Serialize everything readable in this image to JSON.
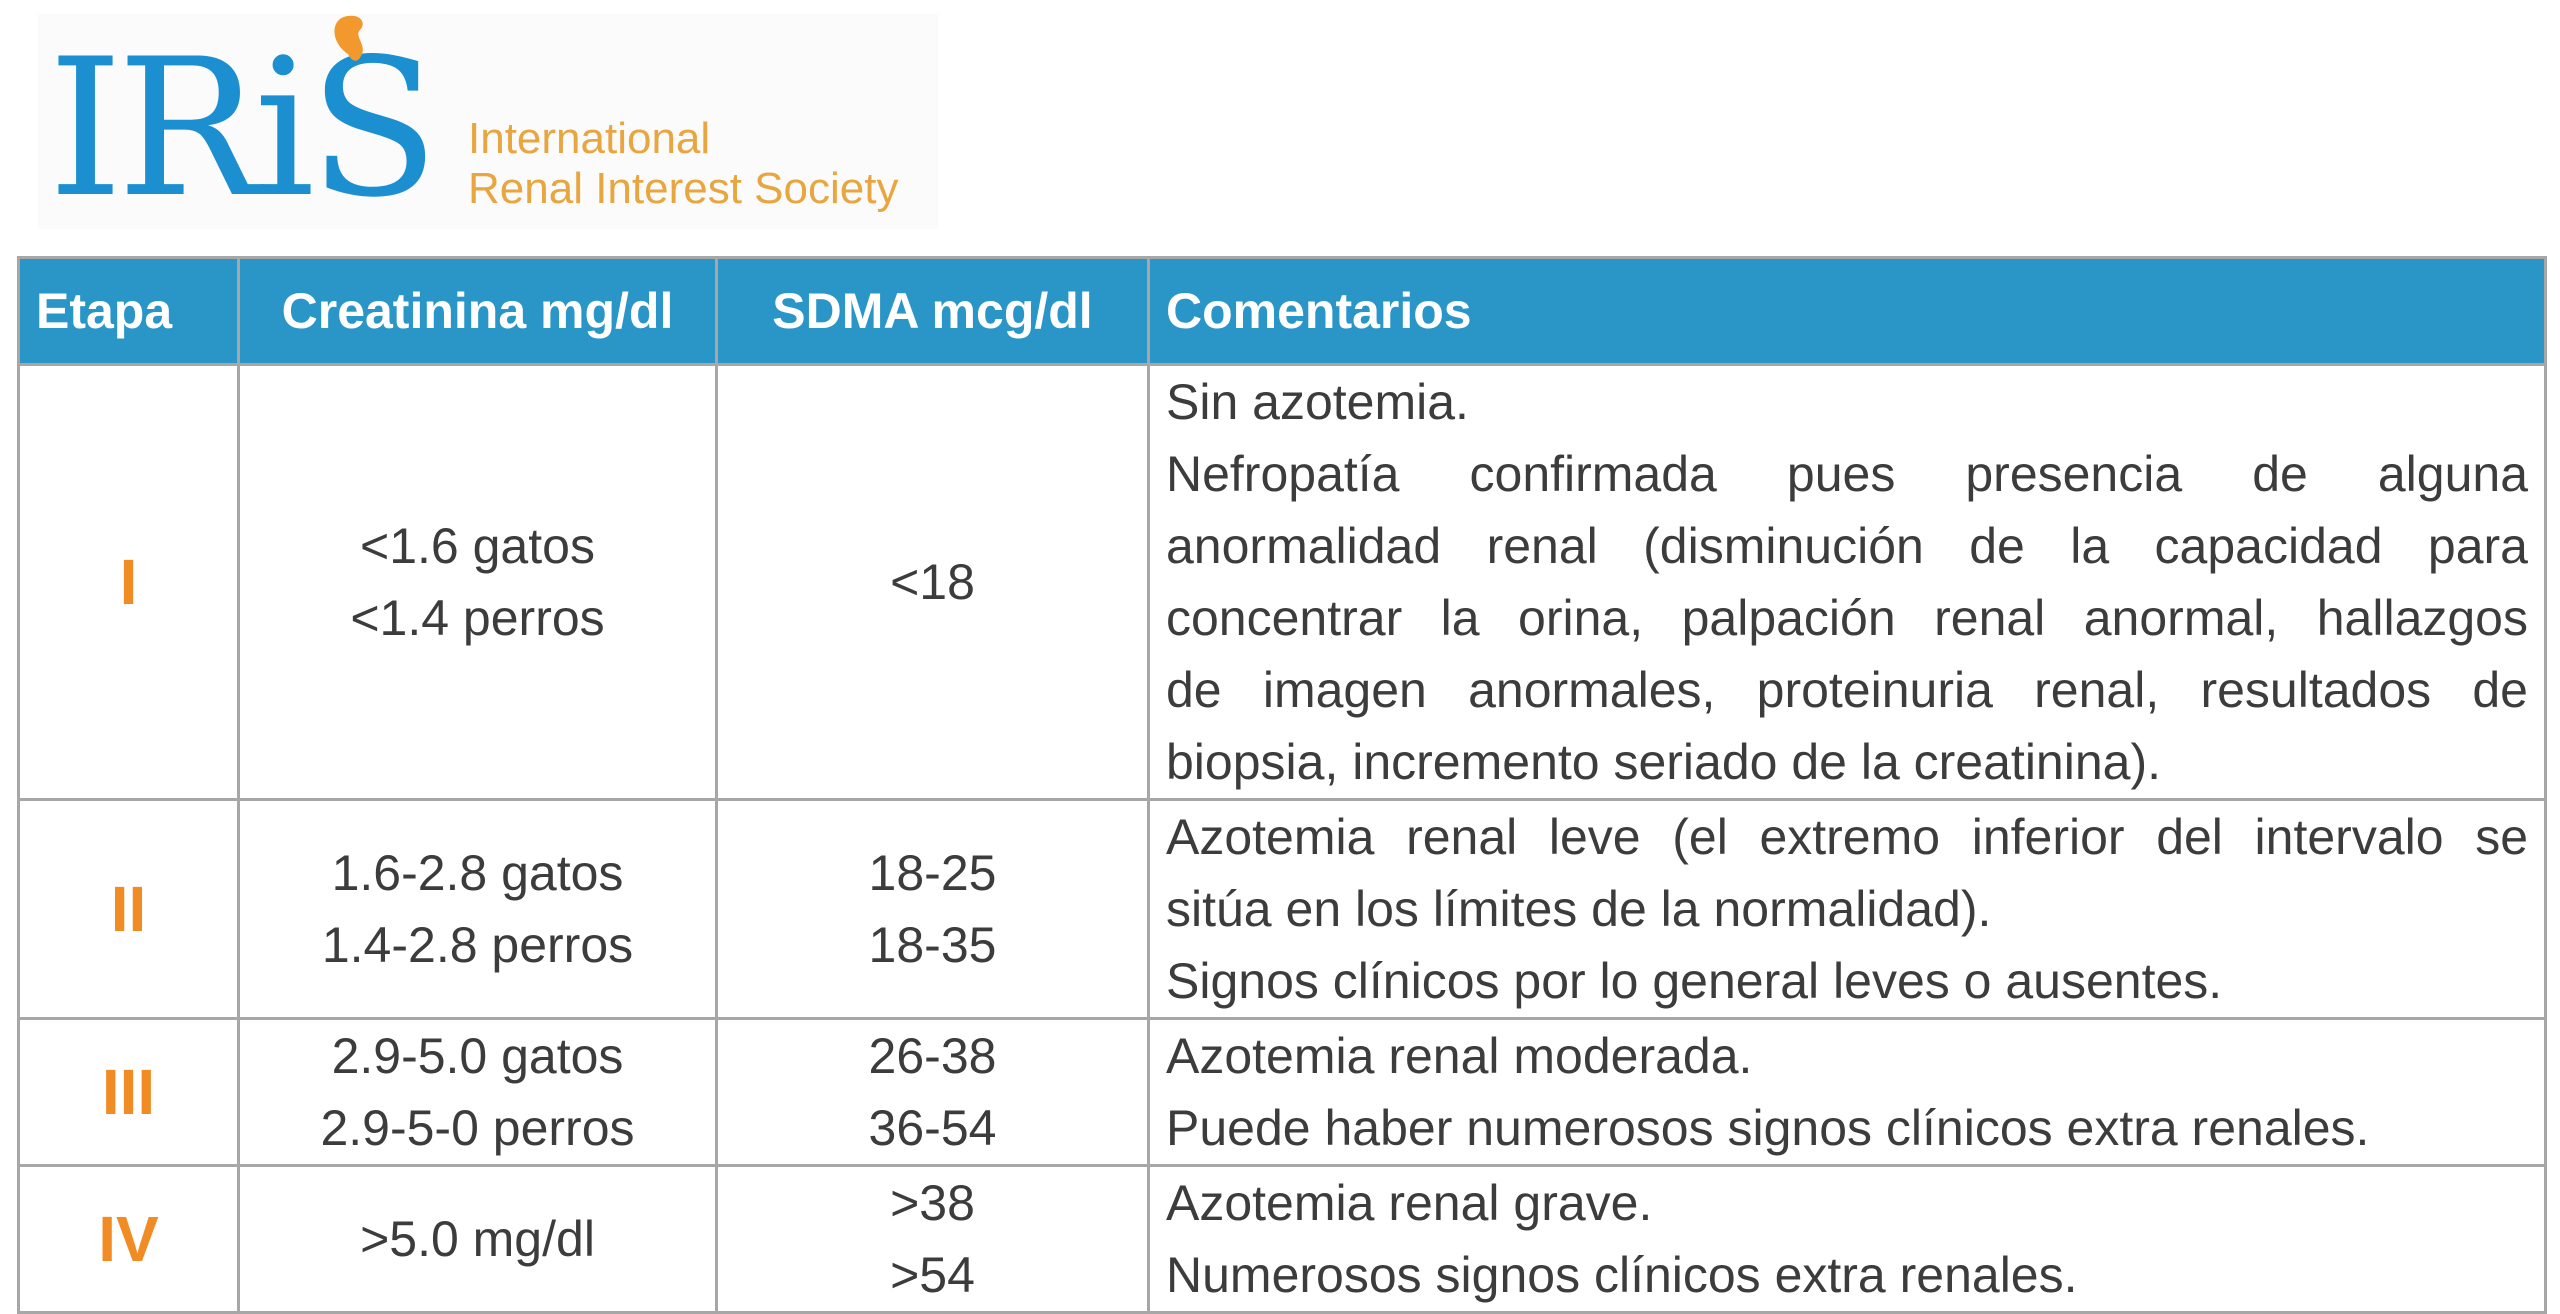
{
  "logo": {
    "wordmark": "IRiS",
    "tagline_line1": "International",
    "tagline_line2": "Renal Interest Society",
    "colors": {
      "blue": "#1b8fcf",
      "orange": "#e8a640"
    }
  },
  "table": {
    "headers": [
      "Etapa",
      "Creatinina mg/dl",
      "SDMA mcg/dl",
      "Comentarios"
    ],
    "rows": [
      {
        "stage": "I",
        "creatinine": [
          "<1.6 gatos",
          "<1.4 perros"
        ],
        "sdma": [
          "<18"
        ],
        "comments": [
          "Sin azotemia.",
          "Nefropatía confirmada pues presencia de alguna",
          "anormalidad renal (disminución de la capacidad para",
          "concentrar la orina, palpación renal anormal, hallazgos",
          "de imagen anormales, proteinuria renal, resultados de",
          "biopsia, incremento seriado de la creatinina)."
        ]
      },
      {
        "stage": "II",
        "creatinine": [
          "1.6-2.8 gatos",
          "1.4-2.8 perros"
        ],
        "sdma": [
          "18-25",
          "18-35"
        ],
        "comments": [
          "Azotemia renal leve (el extremo inferior del intervalo se",
          "sitúa en los límites de la normalidad).",
          "Signos clínicos por lo general leves o ausentes."
        ]
      },
      {
        "stage": "III",
        "creatinine": [
          "2.9-5.0 gatos",
          "2.9-5-0 perros"
        ],
        "sdma": [
          "26-38",
          "36-54"
        ],
        "comments": [
          "Azotemia renal moderada.",
          "Puede haber numerosos signos clínicos extra renales."
        ]
      },
      {
        "stage": "IV",
        "creatinine": [
          ">5.0 mg/dl"
        ],
        "sdma": [
          ">38",
          ">54"
        ],
        "comments": [
          "Azotemia renal grave.",
          "Numerosos signos clínicos extra renales."
        ]
      }
    ],
    "colors": {
      "header_bg": "#2a96c8",
      "stage_text": "#f08c23",
      "border": "#a7a7a7"
    }
  }
}
